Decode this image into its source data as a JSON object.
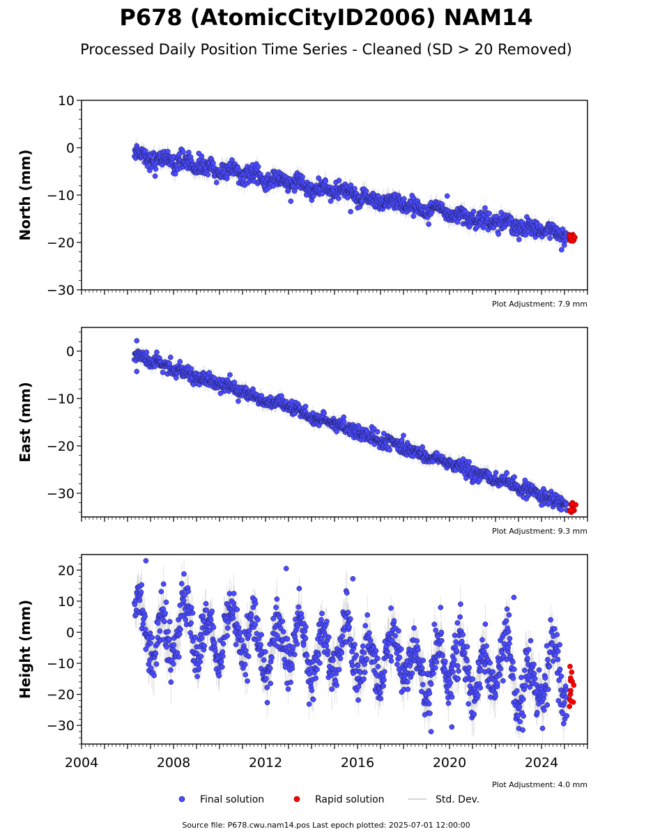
{
  "title": "P678 (AtomicCityID2006) NAM14",
  "subtitle": "Processed Daily Position Time Series - Cleaned (SD > 20 Removed)",
  "chart_data": [
    {
      "type": "scatter",
      "ylabel": "North (mm)",
      "ylim": [
        -30,
        10
      ],
      "yticks": [
        10,
        0,
        -10,
        -20,
        -30
      ],
      "xlim": [
        2004,
        2026
      ],
      "adjustment": "Plot Adjustment: 7.9 mm",
      "series": [
        {
          "name": "Final solution",
          "trend": {
            "start": [
              2006.3,
              -1.3
            ],
            "end": [
              2025.1,
              -18.5
            ]
          },
          "scatter_mm": 0.9,
          "seasonal_mm": 0.6,
          "outliers": [
            [
              2007.2,
              -6.0
            ],
            [
              2009.1,
              -1.2
            ],
            [
              2013.1,
              -11.3
            ],
            [
              2015.7,
              -13.5
            ],
            [
              2019.9,
              -10.2
            ]
          ]
        },
        {
          "name": "Rapid solution",
          "x_range": [
            2025.2,
            2025.5
          ],
          "y_range": [
            -20.2,
            -18.2
          ]
        }
      ],
      "std_dev_mm": 1.4
    },
    {
      "type": "scatter",
      "ylabel": "East (mm)",
      "ylim": [
        -35,
        5
      ],
      "yticks": [
        0,
        -10,
        -20,
        -30
      ],
      "xlim": [
        2004,
        2026
      ],
      "adjustment": "Plot Adjustment: 9.3 mm",
      "series": [
        {
          "name": "Final solution",
          "trend": {
            "start": [
              2006.3,
              -0.8
            ],
            "end": [
              2025.1,
              -32.3
            ]
          },
          "scatter_mm": 0.7,
          "seasonal_mm": 0.3,
          "outliers": [
            [
              2006.4,
              2.2
            ],
            [
              2006.4,
              -4.3
            ],
            [
              2018.0,
              -17.8
            ],
            [
              2024.0,
              -32.5
            ]
          ]
        },
        {
          "name": "Rapid solution",
          "x_range": [
            2025.2,
            2025.5
          ],
          "y_range": [
            -34.2,
            -32.0
          ]
        }
      ],
      "std_dev_mm": 1.2
    },
    {
      "type": "scatter",
      "ylabel": "Height (mm)",
      "ylim": [
        -36,
        25
      ],
      "yticks": [
        20,
        10,
        0,
        -10,
        -20,
        -30
      ],
      "xlim": [
        2004,
        2026
      ],
      "xticks": [
        "2004",
        "2008",
        "2012",
        "2016",
        "2020",
        "2024"
      ],
      "adjustment": "Plot Adjustment: 4.0 mm",
      "series": [
        {
          "name": "Final solution",
          "trend": {
            "start": [
              2006.3,
              2.0
            ],
            "end": [
              2025.1,
              -16.0
            ]
          },
          "scatter_mm": 4.0,
          "seasonal_mm": 8.0,
          "outliers": [
            [
              2006.8,
              23.0
            ],
            [
              2012.9,
              20.5
            ],
            [
              2015.8,
              17.2
            ],
            [
              2019.2,
              -32.0
            ],
            [
              2022.8,
              11.2
            ],
            [
              2020.1,
              -30.5
            ]
          ]
        },
        {
          "name": "Rapid solution",
          "x_range": [
            2025.2,
            2025.5
          ],
          "y_range": [
            -24.0,
            -10.0
          ]
        }
      ],
      "std_dev_mm": 5.0
    }
  ],
  "legend": [
    {
      "label": "Final solution",
      "color": "#4a4aff",
      "kind": "marker"
    },
    {
      "label": "Rapid solution",
      "color": "#ff0000",
      "kind": "marker"
    },
    {
      "label": "Std. Dev.",
      "color": "#c8c8c8",
      "kind": "line"
    }
  ],
  "source": "Source file: P678.cwu.nam14.pos  Last epoch plotted: 2025-07-01 12:00:00",
  "colors": {
    "final": "#4a4aff",
    "rapid": "#ff0000",
    "std": "#9a9a9a",
    "edge": "#1a1a4a"
  }
}
